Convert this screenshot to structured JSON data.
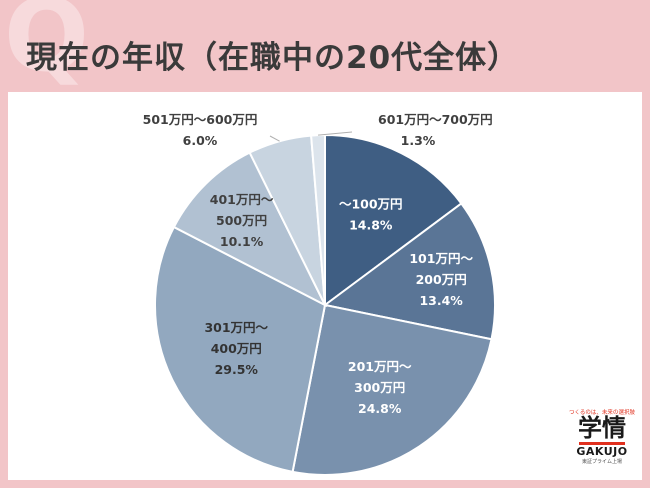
{
  "title": "現在の年収（在職中の20代全体）",
  "chart_data": {
    "type": "pie",
    "title": "現在の年収（在職中の20代全体）",
    "slices": [
      {
        "lines": [
          "～100万円",
          "14.8%"
        ],
        "value": 14.8,
        "color": "#3f5e83"
      },
      {
        "lines": [
          "101万円～",
          "200万円",
          "13.4%"
        ],
        "value": 13.4,
        "color": "#5a7596"
      },
      {
        "lines": [
          "201万円～",
          "300万円",
          "24.8%"
        ],
        "value": 24.8,
        "color": "#7991ad"
      },
      {
        "lines": [
          "301万円～",
          "400万円",
          "29.5%"
        ],
        "value": 29.5,
        "color": "#92a8bf"
      },
      {
        "lines": [
          "401万円～",
          "500万円",
          "10.1%"
        ],
        "value": 10.1,
        "color": "#b1c1d2"
      },
      {
        "lines": [
          "501万円～600万円",
          "6.0%"
        ],
        "value": 6.0,
        "color": "#c8d4e0"
      },
      {
        "lines": [
          "601万円～700万円",
          "1.3%"
        ],
        "value": 1.3,
        "color": "#dce4ec"
      }
    ]
  },
  "logo": {
    "tagline": "つくるのは、未来の選択肢",
    "kanji": "学情",
    "english": "GAKUJO",
    "sub": "東証プライム上場"
  }
}
